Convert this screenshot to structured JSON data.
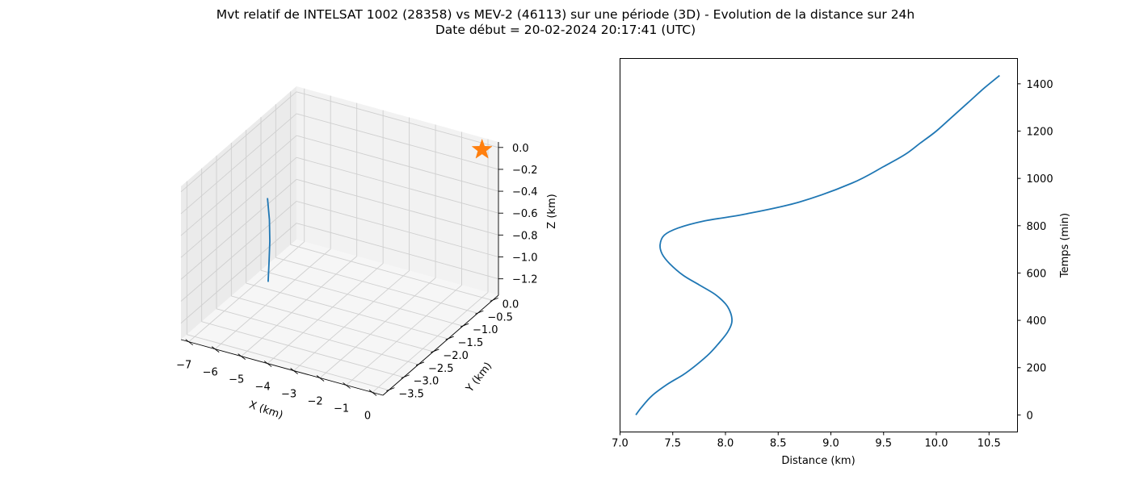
{
  "figure": {
    "title_line1": "Mvt relatif de INTELSAT 1002 (28358) vs MEV-2 (46113) sur une période (3D) - Evolution de la distance sur 24h",
    "title_line2": "Date début = 20-02-2024 20:17:41 (UTC)"
  },
  "chart_data": [
    {
      "type": "line3d",
      "title": "",
      "xlabel": "X (km)",
      "ylabel": "Y (km)",
      "zlabel": "Z (km)",
      "xlim": [
        -7.3,
        0.4
      ],
      "ylim": [
        -3.7,
        0.2
      ],
      "zlim": [
        -1.35,
        0.05
      ],
      "x_ticks": [
        -7,
        -6,
        -5,
        -4,
        -3,
        -2,
        -1,
        0
      ],
      "x_tick_labels": [
        "−7",
        "−6",
        "−5",
        "−4",
        "−3",
        "−2",
        "−1",
        "0"
      ],
      "y_ticks": [
        0.0,
        -0.5,
        -1.0,
        -1.5,
        -2.0,
        -2.5,
        -3.0,
        -3.5
      ],
      "y_tick_labels": [
        "0.0",
        "−0.5",
        "−1.0",
        "−1.5",
        "−2.0",
        "−2.5",
        "−3.0",
        "−3.5"
      ],
      "z_ticks": [
        0.0,
        -0.2,
        -0.4,
        -0.6,
        -0.8,
        -1.0,
        -1.2
      ],
      "z_tick_labels": [
        "0.0",
        "−0.2",
        "−0.4",
        "−0.6",
        "−0.8",
        "−1.0",
        "−1.2"
      ],
      "grid": true,
      "series": [
        {
          "color": "#1f77b4",
          "points": [
            [
              -6.6,
              -1.4,
              -0.55
            ],
            [
              -6.3,
              -1.6,
              -0.68
            ],
            [
              -6.0,
              -1.85,
              -0.8
            ],
            [
              -5.75,
              -2.1,
              -0.92
            ],
            [
              -5.5,
              -2.35,
              -1.02
            ]
          ]
        }
      ],
      "markers": [
        {
          "marker": "star",
          "color": "#ff7f0e",
          "point": [
            0.0,
            0.0,
            0.0
          ]
        }
      ]
    },
    {
      "type": "line",
      "title": "",
      "xlabel": "Distance (km)",
      "ylabel": "Temps (min)",
      "xlim": [
        7.0,
        10.77
      ],
      "ylim": [
        -72,
        1507
      ],
      "x_ticks": [
        7.0,
        7.5,
        8.0,
        8.5,
        9.0,
        9.5,
        10.0,
        10.5
      ],
      "x_tick_labels": [
        "7.0",
        "7.5",
        "8.0",
        "8.5",
        "9.0",
        "9.5",
        "10.0",
        "10.5"
      ],
      "y_ticks": [
        0,
        200,
        400,
        600,
        800,
        1000,
        1200,
        1400
      ],
      "y_tick_labels": [
        "0",
        "200",
        "400",
        "600",
        "800",
        "1000",
        "1200",
        "1400"
      ],
      "y_axis_side": "right",
      "grid": false,
      "series": [
        {
          "color": "#1f77b4",
          "x": [
            7.15,
            7.2,
            7.3,
            7.45,
            7.6,
            7.72,
            7.85,
            7.95,
            8.02,
            8.06,
            8.05,
            8.0,
            7.9,
            7.75,
            7.6,
            7.47,
            7.4,
            7.38,
            7.42,
            7.55,
            7.8,
            8.2,
            8.7,
            9.2,
            9.5,
            9.7,
            9.85,
            10.0,
            10.15,
            10.3,
            10.45,
            10.6
          ],
          "y": [
            0,
            30,
            80,
            130,
            170,
            210,
            260,
            310,
            350,
            390,
            430,
            470,
            510,
            550,
            590,
            640,
            680,
            720,
            760,
            790,
            820,
            850,
            900,
            980,
            1050,
            1100,
            1150,
            1200,
            1260,
            1320,
            1380,
            1435
          ]
        }
      ]
    }
  ]
}
